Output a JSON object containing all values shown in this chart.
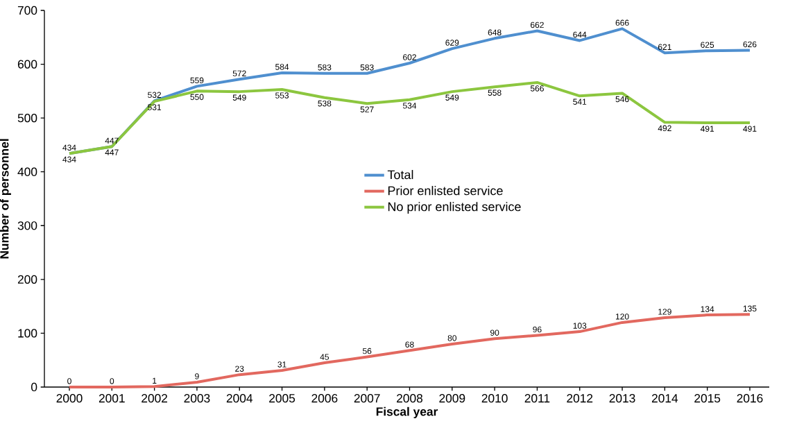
{
  "chart_data": {
    "type": "line",
    "xlabel": "Fiscal year",
    "ylabel": "Number of personnel",
    "categories": [
      "2000",
      "2001",
      "2002",
      "2003",
      "2004",
      "2005",
      "2006",
      "2007",
      "2008",
      "2009",
      "2010",
      "2011",
      "2012",
      "2013",
      "2014",
      "2015",
      "2016"
    ],
    "series": [
      {
        "name": "Total",
        "color": "#4f8fcf",
        "values": [
          434,
          447,
          532,
          559,
          572,
          584,
          583,
          583,
          602,
          629,
          648,
          662,
          644,
          666,
          621,
          625,
          626
        ]
      },
      {
        "name": "Prior enlisted service",
        "color": "#e2685f",
        "values": [
          0,
          0,
          1,
          9,
          23,
          31,
          45,
          56,
          68,
          80,
          90,
          96,
          103,
          120,
          129,
          134,
          135
        ]
      },
      {
        "name": "No prior enlisted service",
        "color": "#8cc63f",
        "values": [
          434,
          447,
          531,
          550,
          549,
          553,
          538,
          527,
          534,
          549,
          558,
          566,
          541,
          546,
          492,
          491,
          491
        ]
      }
    ],
    "ylim": [
      0,
      700
    ],
    "yticks": [
      0,
      100,
      200,
      300,
      400,
      500,
      600,
      700
    ],
    "data_labels": true,
    "legend": "center",
    "grid": false
  }
}
